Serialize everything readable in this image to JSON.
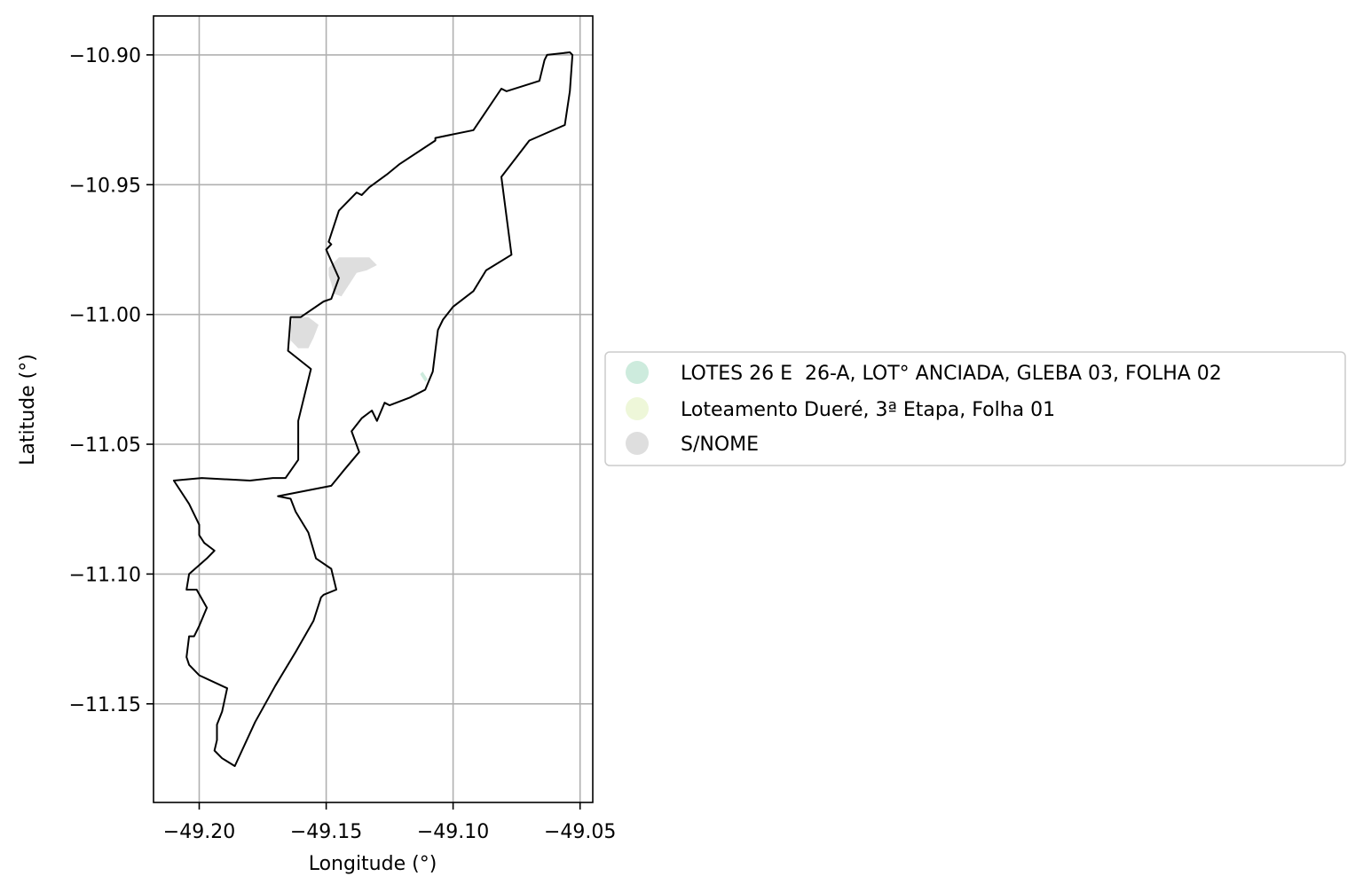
{
  "map": {
    "xlabel": "Longitude (°)",
    "ylabel": "Latitude (°)",
    "xlim": [
      -49.218,
      -49.045
    ],
    "ylim": [
      -11.188,
      -10.885
    ],
    "x_ticks": [
      -49.2,
      -49.15,
      -49.1,
      -49.05
    ],
    "y_ticks": [
      -10.9,
      -10.95,
      -11.0,
      -11.05,
      -11.1,
      -11.15
    ],
    "x_tick_labels": [
      "−49.20",
      "−49.15",
      "−49.10",
      "−49.05"
    ],
    "y_tick_labels": [
      "−10.90",
      "−10.95",
      "−11.00",
      "−11.05",
      "−11.10",
      "−11.15"
    ],
    "grid": true,
    "boundary_color": "#000000",
    "legend_placement": "right",
    "legend": [
      {
        "label": "LOTES 26 E  26-A, LOT° ANCIADA, GLEBA 03, FOLHA 02",
        "color": "#cdebdd"
      },
      {
        "label": "Loteamento Dueré, 3ª Etapa, Folha 01",
        "color": "#eef7d9"
      },
      {
        "label": "S/NOME",
        "color": "#dedede"
      }
    ]
  },
  "chart_data": {
    "type": "map",
    "xlabel": "Longitude (°)",
    "ylabel": "Latitude (°)",
    "xlim": [
      -49.218,
      -49.045
    ],
    "ylim": [
      -11.188,
      -10.885
    ],
    "grid": true,
    "boundary": [
      [
        -49.063,
        -10.9
      ],
      [
        -49.054,
        -10.899
      ],
      [
        -49.053,
        -10.9
      ],
      [
        -49.054,
        -10.914
      ],
      [
        -49.056,
        -10.927
      ],
      [
        -49.07,
        -10.933
      ],
      [
        -49.081,
        -10.947
      ],
      [
        -49.077,
        -10.977
      ],
      [
        -49.087,
        -10.983
      ],
      [
        -49.092,
        -10.991
      ],
      [
        -49.1,
        -10.997
      ],
      [
        -49.104,
        -11.002
      ],
      [
        -49.106,
        -11.006
      ],
      [
        -49.107,
        -11.014
      ],
      [
        -49.108,
        -11.022
      ],
      [
        -49.111,
        -11.029
      ],
      [
        -49.117,
        -11.032
      ],
      [
        -49.125,
        -11.035
      ],
      [
        -49.127,
        -11.034
      ],
      [
        -49.13,
        -11.041
      ],
      [
        -49.132,
        -11.037
      ],
      [
        -49.136,
        -11.04
      ],
      [
        -49.14,
        -11.045
      ],
      [
        -49.137,
        -11.053
      ],
      [
        -49.143,
        -11.06
      ],
      [
        -49.148,
        -11.066
      ],
      [
        -49.169,
        -11.07
      ],
      [
        -49.164,
        -11.071
      ],
      [
        -49.162,
        -11.076
      ],
      [
        -49.157,
        -11.084
      ],
      [
        -49.154,
        -11.094
      ],
      [
        -49.148,
        -11.098
      ],
      [
        -49.146,
        -11.106
      ],
      [
        -49.151,
        -11.108
      ],
      [
        -49.152,
        -11.109
      ],
      [
        -49.155,
        -11.118
      ],
      [
        -49.162,
        -11.13
      ],
      [
        -49.17,
        -11.143
      ],
      [
        -49.178,
        -11.157
      ],
      [
        -49.186,
        -11.174
      ],
      [
        -49.191,
        -11.171
      ],
      [
        -49.194,
        -11.168
      ],
      [
        -49.193,
        -11.164
      ],
      [
        -49.193,
        -11.158
      ],
      [
        -49.191,
        -11.153
      ],
      [
        -49.189,
        -11.144
      ],
      [
        -49.2,
        -11.139
      ],
      [
        -49.204,
        -11.135
      ],
      [
        -49.205,
        -11.132
      ],
      [
        -49.204,
        -11.124
      ],
      [
        -49.202,
        -11.124
      ],
      [
        -49.2,
        -11.12
      ],
      [
        -49.197,
        -11.113
      ],
      [
        -49.201,
        -11.106
      ],
      [
        -49.205,
        -11.106
      ],
      [
        -49.204,
        -11.1
      ],
      [
        -49.197,
        -11.094
      ],
      [
        -49.194,
        -11.091
      ],
      [
        -49.198,
        -11.088
      ],
      [
        -49.2,
        -11.085
      ],
      [
        -49.2,
        -11.081
      ],
      [
        -49.204,
        -11.073
      ],
      [
        -49.21,
        -11.064
      ],
      [
        -49.199,
        -11.063
      ],
      [
        -49.18,
        -11.064
      ],
      [
        -49.171,
        -11.063
      ],
      [
        -49.166,
        -11.063
      ],
      [
        -49.161,
        -11.056
      ],
      [
        -49.161,
        -11.041
      ],
      [
        -49.156,
        -11.021
      ],
      [
        -49.165,
        -11.014
      ],
      [
        -49.164,
        -11.001
      ],
      [
        -49.16,
        -11.001
      ],
      [
        -49.151,
        -10.995
      ],
      [
        -49.148,
        -10.994
      ],
      [
        -49.145,
        -10.986
      ],
      [
        -49.15,
        -10.975
      ],
      [
        -49.148,
        -10.973
      ],
      [
        -49.149,
        -10.972
      ],
      [
        -49.145,
        -10.96
      ],
      [
        -49.138,
        -10.953
      ],
      [
        -49.136,
        -10.954
      ],
      [
        -49.133,
        -10.951
      ],
      [
        -49.126,
        -10.946
      ],
      [
        -49.121,
        -10.942
      ],
      [
        -49.107,
        -10.933
      ],
      [
        -49.107,
        -10.932
      ],
      [
        -49.092,
        -10.929
      ],
      [
        -49.081,
        -10.913
      ],
      [
        -49.079,
        -10.914
      ],
      [
        -49.066,
        -10.91
      ],
      [
        -49.064,
        -10.902
      ],
      [
        -49.063,
        -10.9
      ]
    ],
    "areas": [
      {
        "name": "S/NOME",
        "coords": [
          [
            -49.149,
            -10.982
          ],
          [
            -49.145,
            -10.978
          ],
          [
            -49.133,
            -10.978
          ],
          [
            -49.13,
            -10.981
          ],
          [
            -49.134,
            -10.983
          ],
          [
            -49.138,
            -10.984
          ],
          [
            -49.14,
            -10.987
          ],
          [
            -49.142,
            -10.99
          ],
          [
            -49.144,
            -10.993
          ],
          [
            -49.147,
            -10.992
          ],
          [
            -49.148,
            -10.988
          ],
          [
            -49.149,
            -10.985
          ]
        ]
      },
      {
        "name": "S/NOME",
        "coords": [
          [
            -49.163,
            -11.001
          ],
          [
            -49.157,
            -11.001
          ],
          [
            -49.153,
            -11.004
          ],
          [
            -49.155,
            -11.009
          ],
          [
            -49.157,
            -11.013
          ],
          [
            -49.161,
            -11.013
          ],
          [
            -49.164,
            -11.01
          ],
          [
            -49.164,
            -11.005
          ]
        ]
      },
      {
        "name": "LOTES 26 E  26-A, LOT° ANCIADA, GLEBA 03, FOLHA 02",
        "coords": [
          [
            -49.112,
            -11.022
          ],
          [
            -49.11,
            -11.025
          ],
          [
            -49.111,
            -11.026
          ],
          [
            -49.113,
            -11.023
          ]
        ]
      }
    ]
  }
}
